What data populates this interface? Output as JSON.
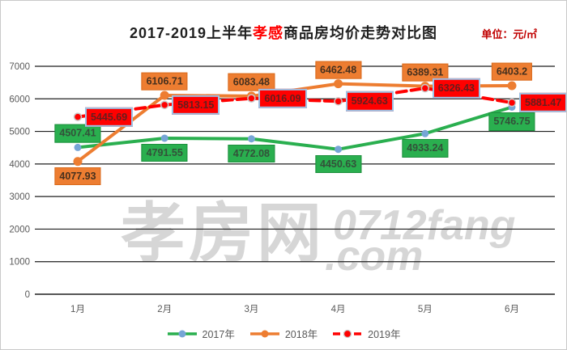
{
  "title": {
    "prefix": "2017-2019上半年",
    "highlight": "孝感",
    "suffix": "商品房均价走势对比图"
  },
  "unit_label": "单位：元/㎡",
  "watermark": {
    "cn": "孝房网",
    "latin": "0712fang",
    "tld": ".com"
  },
  "colors": {
    "grid": "#1f1f1f",
    "axis_text": "#595959",
    "title_text": "#1f1f1f",
    "title_highlight": "#ff0000",
    "unit_text": "#c00000",
    "watermark": "#d6d6d6",
    "series_2017": "#2aaf4f",
    "series_2017_marker": "#76a5d6",
    "series_2018": "#ed7d31",
    "series_2019": "#ff0000",
    "series_2019_marker_ring": "#c8c8c8",
    "red_label_border": "#9dc3e6"
  },
  "chart_data": {
    "type": "line",
    "categories": [
      "1月",
      "2月",
      "3月",
      "4月",
      "5月",
      "6月"
    ],
    "ylim": [
      0,
      7000
    ],
    "ytick_step": 1000,
    "yticks": [
      0,
      1000,
      2000,
      3000,
      4000,
      5000,
      6000,
      7000
    ],
    "grid": true,
    "legend_position": "bottom",
    "series": [
      {
        "name": "2017年",
        "color": "#2aaf4f",
        "marker_color": "#76a5d6",
        "dashed": false,
        "values": [
          4507.41,
          4791.55,
          4772.08,
          4450.63,
          4933.24,
          5746.75
        ],
        "label_pos": [
          "above",
          "below",
          "below",
          "below",
          "below",
          "below"
        ]
      },
      {
        "name": "2018年",
        "color": "#ed7d31",
        "marker_color": "#ed7d31",
        "dashed": false,
        "values": [
          4077.93,
          6106.71,
          6083.48,
          6462.48,
          6389.31,
          6403.2
        ],
        "label_pos": [
          "below",
          "above",
          "above",
          "above",
          "above",
          "above"
        ]
      },
      {
        "name": "2019年",
        "color": "#ff0000",
        "marker_color": "#ff0000",
        "dashed": true,
        "values": [
          5445.69,
          5813.15,
          6016.09,
          5924.63,
          6326.43,
          5881.47
        ],
        "label_pos": [
          "right",
          "right",
          "right",
          "right",
          "right",
          "right"
        ]
      }
    ]
  }
}
